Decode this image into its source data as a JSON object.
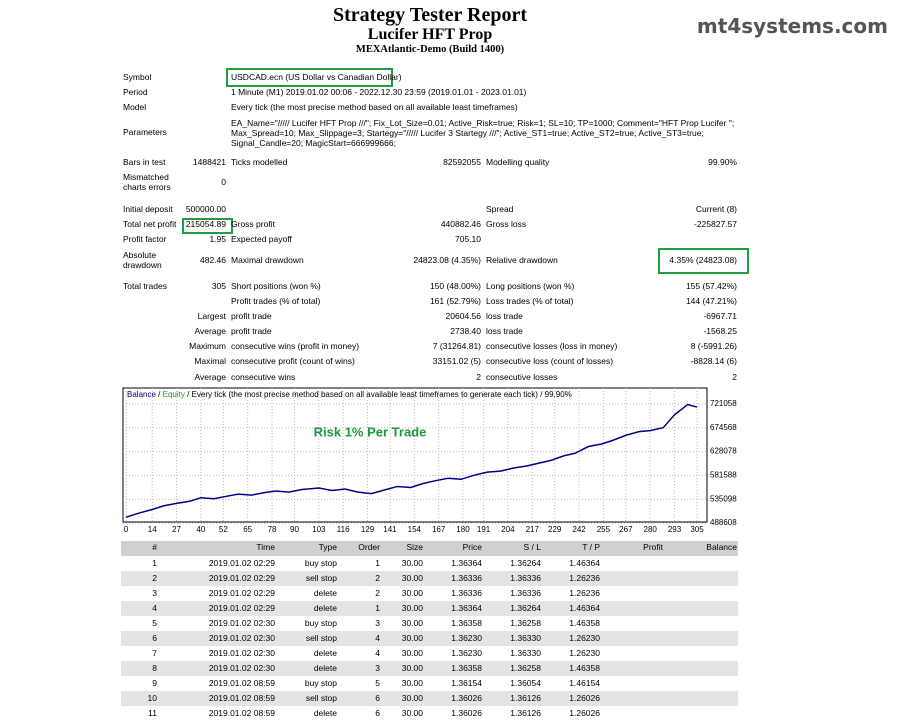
{
  "header": {
    "title": "Strategy Tester Report",
    "subtitle": "Lucifer HFT Prop",
    "server": "MEXAtlantic-Demo (Build 1400)",
    "watermark": "mt4systems.com"
  },
  "report": {
    "symbol": [
      "Symbol",
      "USDCAD.ecn (US Dollar vs Canadian Dollar)"
    ],
    "period": [
      "Period",
      "1 Minute (M1) 2019.01.02 00:06 - 2022.12.30 23:59 (2019.01.01 - 2023.01.01)"
    ],
    "model": [
      "Model",
      "Every tick (the most precise method based on all available least timeframes)"
    ],
    "parameters": {
      "label": "Parameters",
      "lines": [
        "EA_Name=\"///// Lucifer HFT Prop ///\"; Fix_Lot_Size=0.01; Active_Risk=true; Risk=1; SL=10; TP=1000; Comment=\"HFT Prop Lucifer \";",
        "Max_Spread=10; Max_Slippage=3; Startegy=\"///// Lucifer 3 Startegy ///\"; Active_ST1=true; Active_ST2=true; Active_ST3=true;",
        "Signal_Candle=20; MagicStart=666999666;"
      ]
    },
    "stats": [
      [
        "Bars in test",
        "1488421",
        "Ticks modelled",
        "82592055",
        "Modelling quality",
        "99.90%"
      ],
      [
        "Mismatched charts errors",
        "0",
        null,
        null,
        null,
        null
      ],
      [
        "Initial deposit",
        "500000.00",
        null,
        null,
        "Spread",
        "Current (8)"
      ],
      [
        "Total net profit",
        "215054.89",
        "Gross profit",
        "440882.46",
        "Gross loss",
        "-225827.57"
      ],
      [
        "Profit factor",
        "1.95",
        "Expected payoff",
        "705.10",
        null,
        null
      ],
      [
        "Absolute drawdown",
        "482.46",
        "Maximal drawdown",
        "24823.08 (4.35%)",
        "Relative drawdown",
        "4.35% (24823.08)"
      ],
      [
        "Total trades",
        "305",
        "Short positions (won %)",
        "150 (48.00%)",
        "Long positions (won %)",
        "155 (57.42%)"
      ],
      [
        null,
        null,
        "Profit trades (% of total)",
        "161 (52.79%)",
        "Loss trades (% of total)",
        "144 (47.21%)"
      ],
      [
        null,
        "Largest",
        "profit trade",
        "20604.56",
        "loss trade",
        "-6967.71"
      ],
      [
        null,
        "Average",
        "profit trade",
        "2738.40",
        "loss trade",
        "-1568.25"
      ],
      [
        null,
        "Maximum",
        "consecutive wins (profit in money)",
        "7 (31264.81)",
        "consecutive losses (loss in money)",
        "8 (-5991.26)"
      ],
      [
        null,
        "Maximal",
        "consecutive profit (count of wins)",
        "33151.02 (5)",
        "consecutive loss (count of losses)",
        "-8828.14 (6)"
      ],
      [
        null,
        "Average",
        "consecutive wins",
        "2",
        "consecutive losses",
        "2"
      ]
    ]
  },
  "chart_data": {
    "type": "line",
    "annotation": "Risk 1% Per Trade",
    "legend_separator": "/",
    "legend_text": "Every tick (the most precise method based on all available least timeframes to generate each tick)",
    "legend_quality": "99.90%",
    "x": [
      0,
      7,
      14,
      20,
      27,
      34,
      40,
      47,
      54,
      60,
      67,
      74,
      80,
      87,
      94,
      103,
      110,
      117,
      124,
      131,
      138,
      145,
      152,
      159,
      165,
      172,
      179,
      186,
      193,
      200,
      207,
      214,
      220,
      227,
      234,
      240,
      247,
      254,
      260,
      267,
      274,
      280,
      287,
      293,
      300,
      305
    ],
    "series": [
      {
        "name": "Balance",
        "color": "#00008b",
        "values": [
          500000,
          508000,
          515000,
          522000,
          527000,
          531000,
          538000,
          536000,
          541000,
          545000,
          543000,
          548000,
          551000,
          549000,
          554000,
          557000,
          552000,
          555000,
          549000,
          546000,
          553000,
          560000,
          558000,
          566000,
          571000,
          576000,
          574000,
          582000,
          588000,
          590000,
          596000,
          600000,
          605000,
          611000,
          620000,
          625000,
          638000,
          643000,
          650000,
          660000,
          667000,
          669000,
          675000,
          700000,
          720000,
          715055
        ]
      },
      {
        "name": "Equity",
        "color": "#1a9a1a"
      }
    ],
    "xlim": [
      0,
      305
    ],
    "xticks": [
      0,
      14,
      27,
      40,
      52,
      65,
      78,
      90,
      103,
      116,
      129,
      141,
      154,
      167,
      180,
      191,
      204,
      217,
      229,
      242,
      255,
      267,
      280,
      293,
      305
    ],
    "ylim": [
      488608,
      721058
    ],
    "yticks": [
      488608,
      535098,
      581588,
      628078,
      674568,
      721058
    ],
    "grid": true
  },
  "trades": {
    "columns": [
      "#",
      "Time",
      "Type",
      "Order",
      "Size",
      "Price",
      "S / L",
      "T / P",
      "Profit",
      "Balance"
    ],
    "rows": [
      [
        "1",
        "2019.01.02 02:29",
        "buy stop",
        "1",
        "30.00",
        "1.36364",
        "1.36264",
        "1.46364"
      ],
      [
        "2",
        "2019.01.02 02:29",
        "sell stop",
        "2",
        "30.00",
        "1.36336",
        "1.36336",
        "1.26236"
      ],
      [
        "3",
        "2019.01.02 02:29",
        "delete",
        "2",
        "30.00",
        "1.36336",
        "1.36336",
        "1.26236"
      ],
      [
        "4",
        "2019.01.02 02:29",
        "delete",
        "1",
        "30.00",
        "1.36364",
        "1.36264",
        "1.46364"
      ],
      [
        "5",
        "2019.01.02 02:30",
        "buy stop",
        "3",
        "30.00",
        "1.36358",
        "1.36258",
        "1.46358"
      ],
      [
        "6",
        "2019.01.02 02:30",
        "sell stop",
        "4",
        "30.00",
        "1.36230",
        "1.36330",
        "1.26230"
      ],
      [
        "7",
        "2019.01.02 02:30",
        "delete",
        "4",
        "30.00",
        "1.36230",
        "1.36330",
        "1.26230"
      ],
      [
        "8",
        "2019.01.02 02:30",
        "delete",
        "3",
        "30.00",
        "1.36358",
        "1.36258",
        "1.46358"
      ],
      [
        "9",
        "2019.01.02 08:59",
        "buy stop",
        "5",
        "30.00",
        "1.36154",
        "1.36054",
        "1.46154"
      ],
      [
        "10",
        "2019.01.02 08:59",
        "sell stop",
        "6",
        "30.00",
        "1.36026",
        "1.36126",
        "1.26026"
      ],
      [
        "11",
        "2019.01.02 08:59",
        "delete",
        "6",
        "30.00",
        "1.36026",
        "1.36126",
        "1.26026"
      ]
    ]
  }
}
